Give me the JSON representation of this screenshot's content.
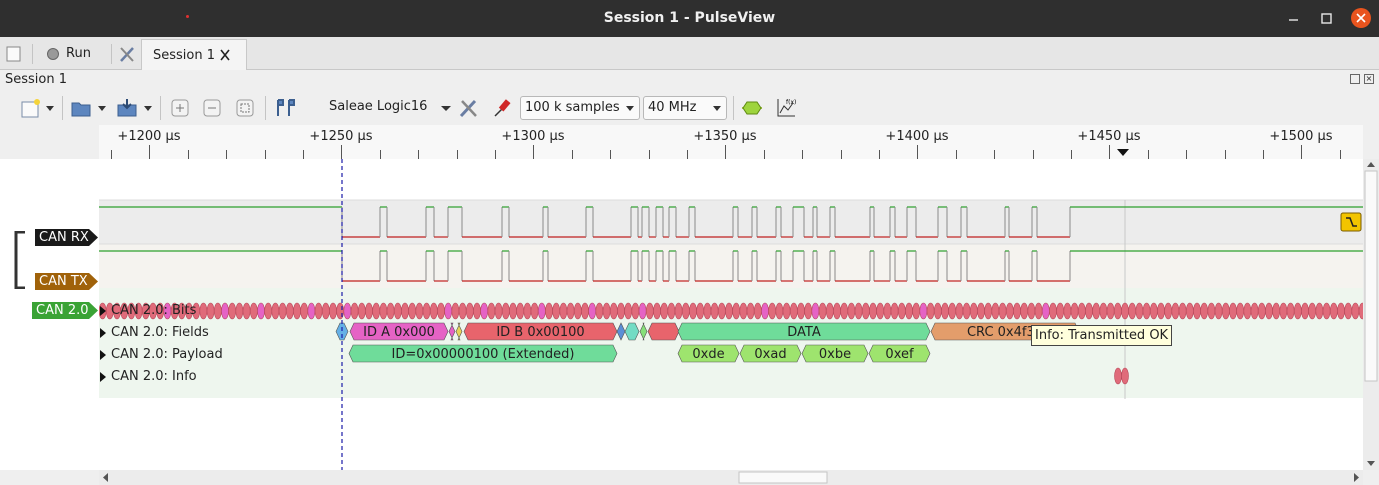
{
  "window": {
    "title": "Session 1 - PulseView",
    "minimize_icon": "minimize-icon",
    "maximize_icon": "maximize-icon",
    "close_icon": "close-icon"
  },
  "tabbar": {
    "run_label": "Run",
    "session_tab_label": "Session 1"
  },
  "session": {
    "header_label": "Session 1"
  },
  "toolbar": {
    "device_label": "Saleae Logic16",
    "samples_value": "100 k samples",
    "rate_value": "40 MHz"
  },
  "ruler": {
    "ticks": [
      "+1200 µs",
      "+1250 µs",
      "+1300 µs",
      "+1350 µs",
      "+1400 µs",
      "+1450 µs",
      "+1500 µs"
    ]
  },
  "signals": {
    "can_rx": "CAN RX",
    "can_tx": "CAN TX",
    "decoder": "CAN 2.0"
  },
  "decoder_rows": {
    "bits": "CAN 2.0: Bits",
    "fields": "CAN 2.0: Fields",
    "payload": "CAN 2.0: Payload",
    "info": "CAN 2.0: Info"
  },
  "annotations": {
    "id_a": "ID A 0x000",
    "id_b": "ID B 0x00100",
    "data": "DATA",
    "crc": "CRC 0x4f31",
    "extended_id": "ID=0x00000100 (Extended)",
    "bytes": [
      "0xde",
      "0xad",
      "0xbe",
      "0xef"
    ]
  },
  "tooltip": {
    "text": "Info: Transmitted OK"
  },
  "colors": {
    "titlebar": "#2f2f2f",
    "close_button": "#e9541e",
    "can_rx_label": "#1a1a1a",
    "can_tx_label": "#a0620a",
    "decoder_label": "#3aa335",
    "signal_high": "#2ca02c",
    "signal_low": "#c0201f",
    "bits_fill": "#e06b7a",
    "field_pink": "#e563c5",
    "field_red": "#e8646c",
    "field_green": "#6fdc9a",
    "field_orange": "#e39d6b",
    "byte_green": "#9ee46e"
  }
}
